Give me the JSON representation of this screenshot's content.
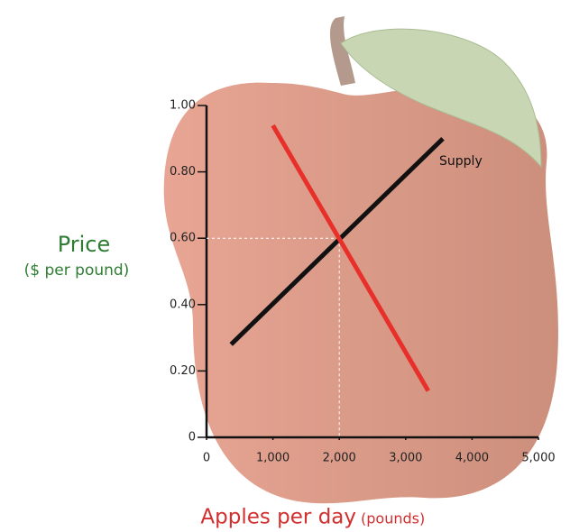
{
  "chart_data": {
    "type": "line",
    "y_label": "Price",
    "y_label_sub": "($ per pound)",
    "x_label": "Apples per day",
    "x_label_sub": "(pounds)",
    "xlim": [
      0,
      5000
    ],
    "ylim": [
      0,
      1.0
    ],
    "xticks": [
      0,
      {
        "value": 1000,
        "label": "1,000"
      },
      {
        "value": 2000,
        "label": "2,000"
      },
      {
        "value": 3000,
        "label": "3,000"
      },
      {
        "value": 4000,
        "label": "4,000"
      },
      {
        "value": 5000,
        "label": "5,000"
      }
    ],
    "yticks": [
      0,
      {
        "value": 0.2,
        "label": "0.20"
      },
      {
        "value": 0.4,
        "label": "0.40"
      },
      {
        "value": 0.6,
        "label": "0.60"
      },
      {
        "value": 0.8,
        "label": "0.80"
      },
      {
        "value": 1.0,
        "label": "1.00"
      }
    ],
    "series": [
      {
        "name": "Supply",
        "color": "#111111",
        "x": [
          370,
          3560
        ],
        "values": [
          0.28,
          0.9
        ]
      },
      {
        "color": "#e8302a",
        "x": [
          1000,
          3340
        ],
        "values": [
          0.94,
          0.14
        ]
      }
    ],
    "equilibrium": {
      "x": 2000,
      "y": 0.6
    }
  }
}
